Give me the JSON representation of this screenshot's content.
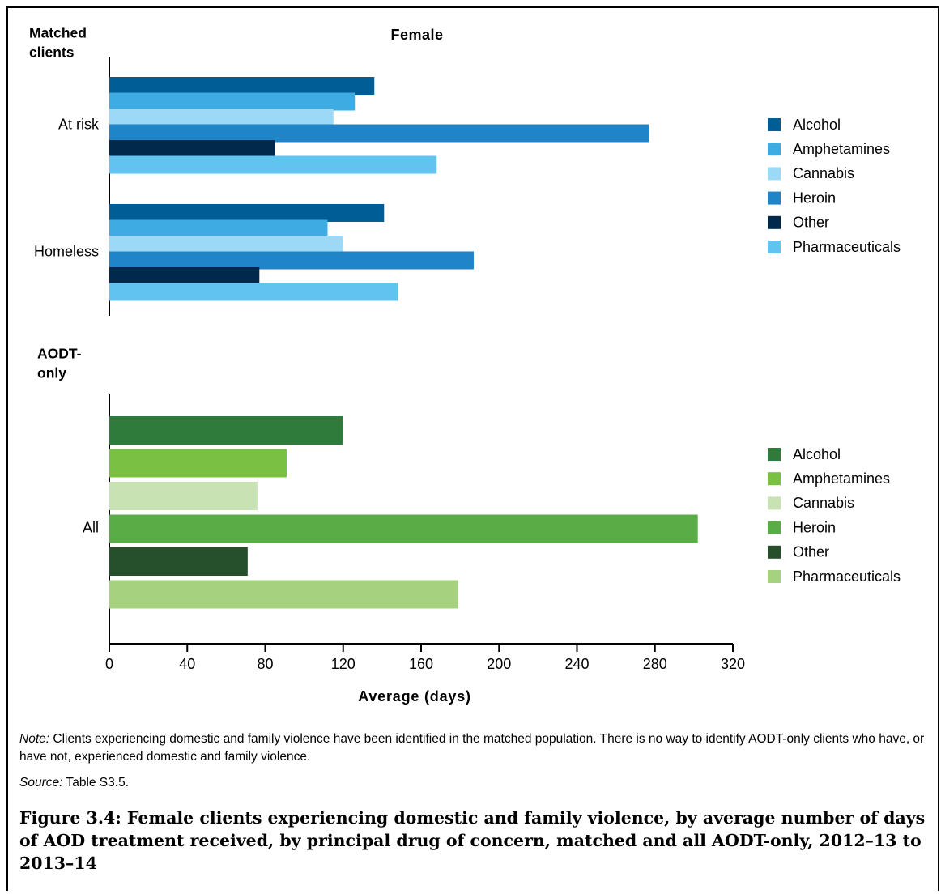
{
  "chart_data": {
    "type": "bar",
    "orientation": "horizontal",
    "title": "Female",
    "xlabel": "Average (days)",
    "xlim": [
      0,
      320
    ],
    "xticks": [
      0,
      40,
      80,
      120,
      160,
      200,
      240,
      280,
      320
    ],
    "grid": false,
    "legend_placement": "right",
    "panels": [
      {
        "label": "Matched clients",
        "categories": [
          "At risk",
          "Homeless"
        ],
        "series": [
          {
            "name": "Alcohol",
            "color": "#005d95",
            "values": [
              136,
              141
            ]
          },
          {
            "name": "Amphetamines",
            "color": "#3eabe3",
            "values": [
              126,
              112
            ]
          },
          {
            "name": "Cannabis",
            "color": "#9cd9f7",
            "values": [
              115,
              120
            ]
          },
          {
            "name": "Heroin",
            "color": "#1f85c8",
            "values": [
              277,
              187
            ]
          },
          {
            "name": "Other",
            "color": "#00294b",
            "values": [
              85,
              77
            ]
          },
          {
            "name": "Pharmaceuticals",
            "color": "#61c3f0",
            "values": [
              168,
              148
            ]
          }
        ]
      },
      {
        "label": "AODT-only",
        "categories": [
          "All"
        ],
        "series": [
          {
            "name": "Alcohol",
            "color": "#2e7b3c",
            "values": [
              120
            ]
          },
          {
            "name": "Amphetamines",
            "color": "#7ac143",
            "values": [
              91
            ]
          },
          {
            "name": "Cannabis",
            "color": "#c8e2b4",
            "values": [
              76
            ]
          },
          {
            "name": "Heroin",
            "color": "#5aac46",
            "values": [
              302
            ]
          },
          {
            "name": "Other",
            "color": "#25502b",
            "values": [
              71
            ]
          },
          {
            "name": "Pharmaceuticals",
            "color": "#a6d27f",
            "values": [
              179
            ]
          }
        ]
      }
    ]
  },
  "note": {
    "label": "Note:",
    "text": " Clients experiencing domestic and family violence have been identified in the matched population. There is no way to identify AODT-only clients who have, or have not, experienced domestic and family violence."
  },
  "source": {
    "label": "Source:",
    "text": " Table S3.5."
  },
  "caption": "Figure 3.4: Female clients experiencing domestic and family violence, by average number of days of AOD treatment received, by principal drug of concern, matched and all AODT-only, 2012–13 to 2013–14"
}
